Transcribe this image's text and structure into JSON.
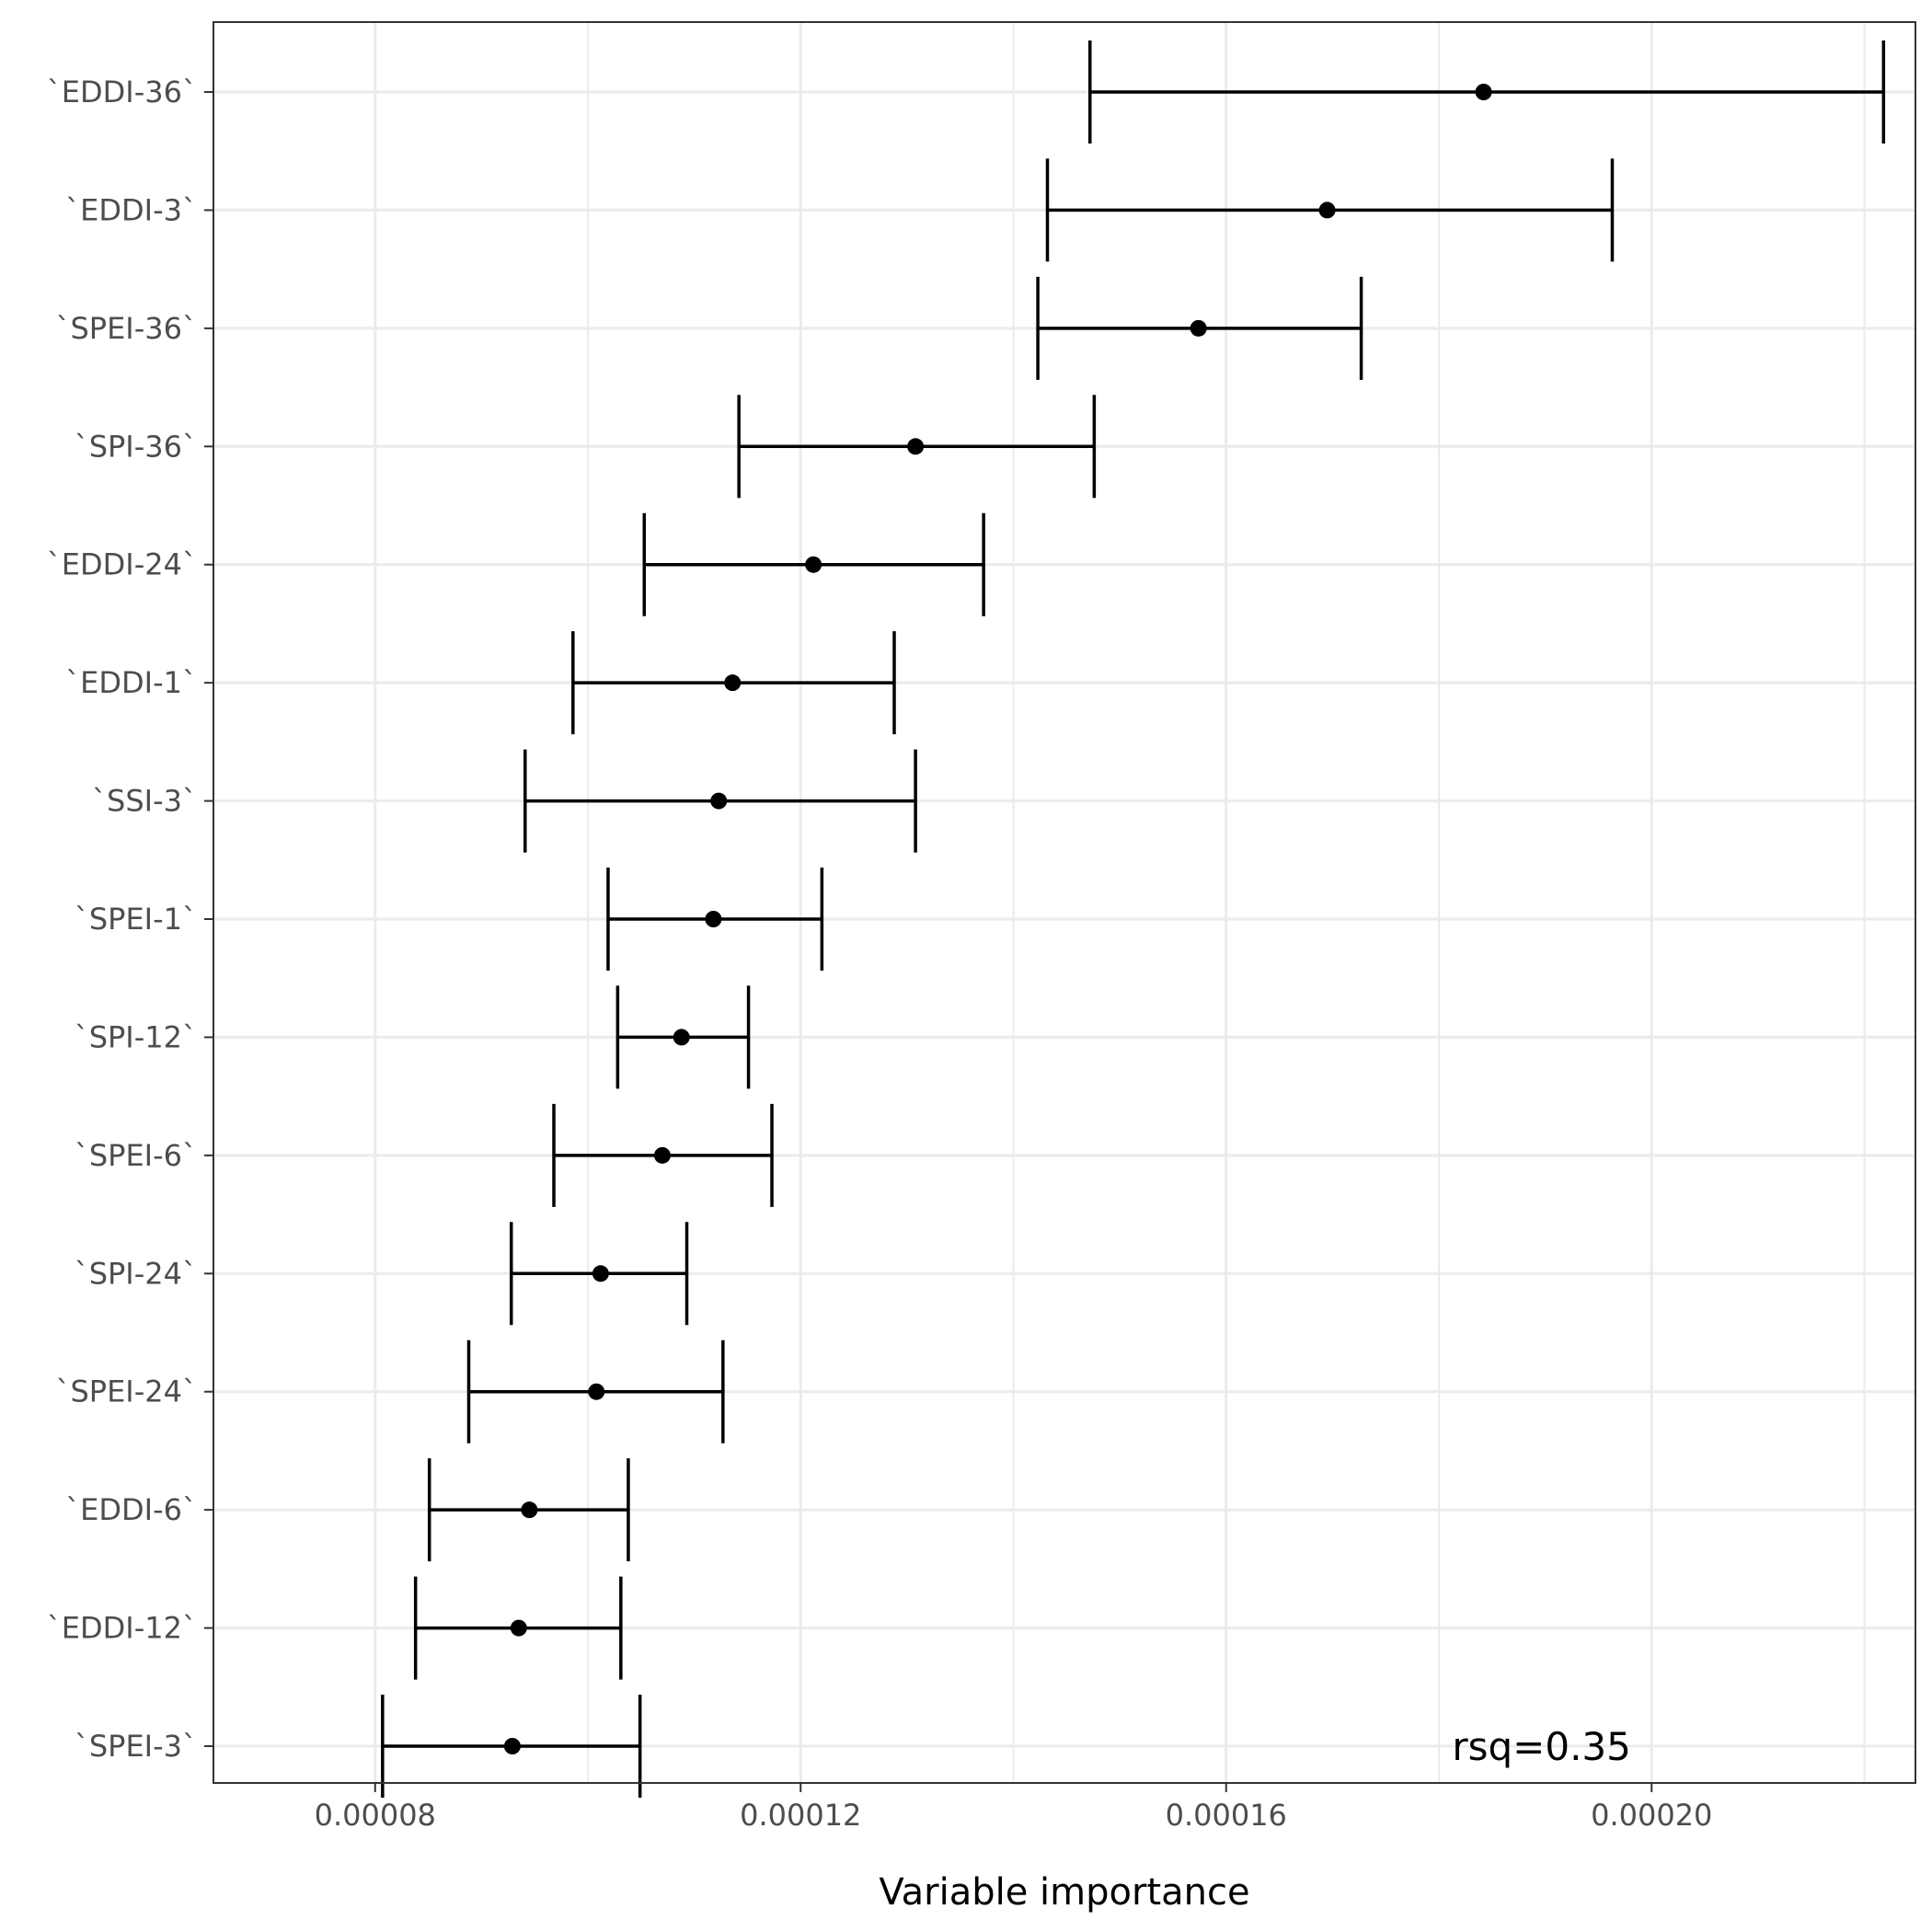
{
  "chart_data": {
    "type": "errorbar",
    "title": "",
    "xlabel": "Variable importance",
    "ylabel": "",
    "xlim": [
      6.48e-05,
      0.0002248
    ],
    "x_ticks": [
      {
        "value": 8e-05,
        "label": "0.00008"
      },
      {
        "value": 0.00012,
        "label": "0.00012"
      },
      {
        "value": 0.00016,
        "label": "0.00016"
      },
      {
        "value": 0.0002,
        "label": "0.00020"
      }
    ],
    "x_minor_ticks": [
      0.0001,
      0.00014,
      0.00018,
      0.00022
    ],
    "grid": true,
    "annotation": {
      "text": "rsq=0.35",
      "x": 0.00019,
      "category": "`SPEI-3`"
    },
    "points": [
      {
        "category": "`EDDI-36`",
        "value": 0.0001842,
        "low": 0.0001472,
        "high": 0.0002218
      },
      {
        "category": "`EDDI-3`",
        "value": 0.0001695,
        "low": 0.0001432,
        "high": 0.0001963
      },
      {
        "category": "`SPEI-36`",
        "value": 0.0001574,
        "low": 0.0001423,
        "high": 0.0001727
      },
      {
        "category": "`SPI-36`",
        "value": 0.0001308,
        "low": 0.0001142,
        "high": 0.0001476
      },
      {
        "category": "`EDDI-24`",
        "value": 0.0001212,
        "low": 0.0001053,
        "high": 0.0001372
      },
      {
        "category": "`EDDI-1`",
        "value": 0.0001136,
        "low": 9.86e-05,
        "high": 0.0001288
      },
      {
        "category": "`SSI-3`",
        "value": 0.0001123,
        "low": 9.41e-05,
        "high": 0.0001308
      },
      {
        "category": "`SPEI-1`",
        "value": 0.0001118,
        "low": 0.0001019,
        "high": 0.000122
      },
      {
        "category": "`SPI-12`",
        "value": 0.0001088,
        "low": 0.0001028,
        "high": 0.0001151
      },
      {
        "category": "`SPEI-6`",
        "value": 0.000107,
        "low": 9.68e-05,
        "high": 0.0001173
      },
      {
        "category": "`SPI-24`",
        "value": 0.0001012,
        "low": 9.28e-05,
        "high": 0.0001093
      },
      {
        "category": "`SPEI-24`",
        "value": 0.0001008,
        "low": 8.88e-05,
        "high": 0.0001127
      },
      {
        "category": "`EDDI-6`",
        "value": 9.45e-05,
        "low": 8.51e-05,
        "high": 0.0001038
      },
      {
        "category": "`EDDI-12`",
        "value": 9.35e-05,
        "low": 8.38e-05,
        "high": 0.0001031
      },
      {
        "category": "`SPEI-3`",
        "value": 9.29e-05,
        "low": 8.07e-05,
        "high": 0.0001049
      }
    ]
  }
}
